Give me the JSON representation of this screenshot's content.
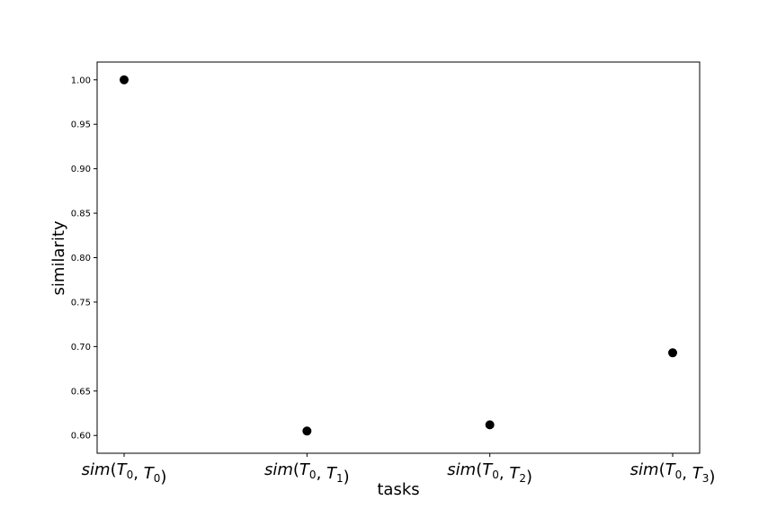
{
  "chart_data": {
    "type": "scatter",
    "categories": [
      "sim(T0,T0)",
      "sim(T0,T1)",
      "sim(T0,T2)",
      "sim(T0,T3)"
    ],
    "category_labels": [
      {
        "fn": "sim",
        "a": "T",
        "a_sub": "0",
        "b": "T",
        "b_sub": "0"
      },
      {
        "fn": "sim",
        "a": "T",
        "a_sub": "0",
        "b": "T",
        "b_sub": "1"
      },
      {
        "fn": "sim",
        "a": "T",
        "a_sub": "0",
        "b": "T",
        "b_sub": "2"
      },
      {
        "fn": "sim",
        "a": "T",
        "a_sub": "0",
        "b": "T",
        "b_sub": "3"
      }
    ],
    "values": [
      1.0,
      0.605,
      0.612,
      0.693
    ],
    "xlabel": "tasks",
    "ylabel": "similarity",
    "ylim": [
      0.58,
      1.02
    ],
    "yticks": [
      0.6,
      0.65,
      0.7,
      0.75,
      0.8,
      0.85,
      0.9,
      0.95,
      1.0
    ],
    "ytick_labels": [
      "0.60",
      "0.65",
      "0.70",
      "0.75",
      "0.80",
      "0.85",
      "0.90",
      "0.95",
      "1.00"
    ],
    "marker_color": "#000000",
    "grid": false,
    "legend": false
  }
}
